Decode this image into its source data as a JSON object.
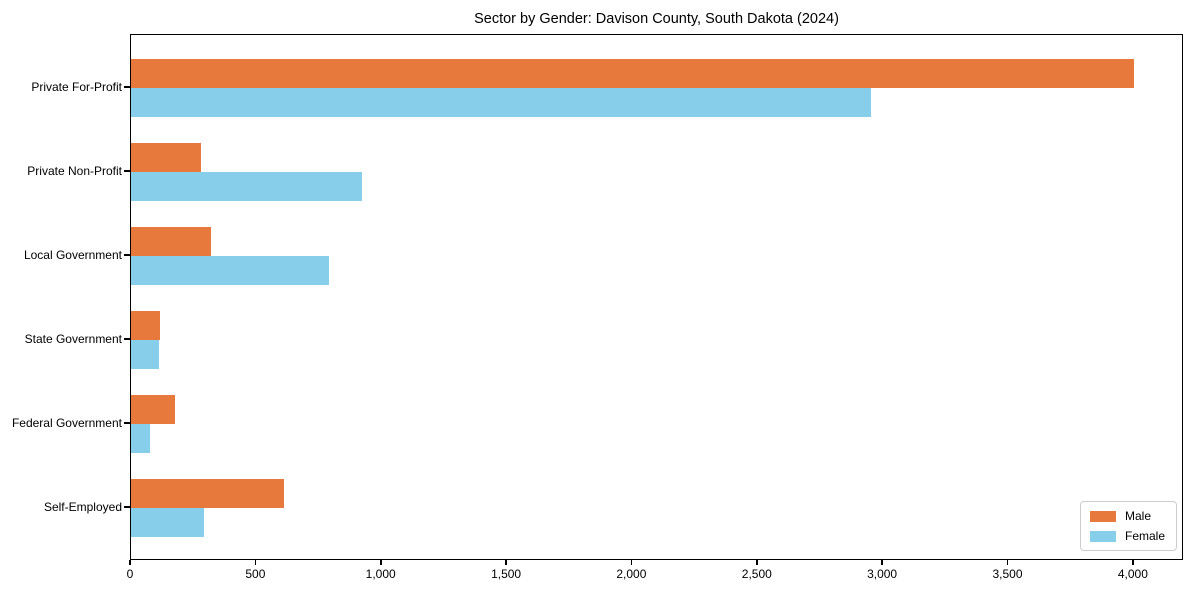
{
  "chart_data": {
    "type": "bar",
    "orientation": "horizontal",
    "title": "Sector by Gender: Davison County, South Dakota (2024)",
    "categories": [
      "Private For-Profit",
      "Private Non-Profit",
      "Local Government",
      "State Government",
      "Federal Government",
      "Self-Employed"
    ],
    "series": [
      {
        "name": "Male",
        "color": "#e8793d",
        "values": [
          4000,
          280,
          320,
          115,
          175,
          610
        ]
      },
      {
        "name": "Female",
        "color": "#87ceeb",
        "values": [
          2950,
          920,
          790,
          110,
          75,
          290
        ]
      }
    ],
    "xlim": [
      0,
      4200
    ],
    "xticks": [
      0,
      500,
      1000,
      1500,
      2000,
      2500,
      3000,
      3500,
      4000
    ],
    "xtick_labels": [
      "0",
      "500",
      "1,000",
      "1,500",
      "2,000",
      "2,500",
      "3,000",
      "3,500",
      "4,000"
    ],
    "xlabel": "",
    "ylabel": "",
    "grid": false,
    "legend_position": "lower right",
    "background_color": "#ffffff",
    "spine_color": "#000000"
  }
}
